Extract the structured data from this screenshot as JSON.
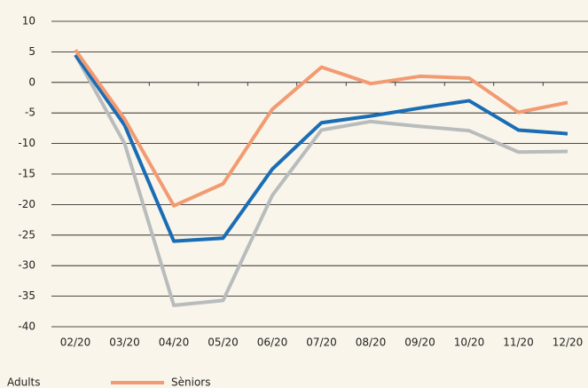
{
  "chart_data": {
    "type": "line",
    "categories": [
      "02/20",
      "03/20",
      "04/20",
      "05/20",
      "06/20",
      "07/20",
      "08/20",
      "09/20",
      "10/20",
      "11/20",
      "12/20"
    ],
    "series": [
      {
        "color": "#b8bcbd",
        "values": [
          4.5,
          -10,
          -36.5,
          -35.7,
          -18.5,
          -7.8,
          -6.4,
          -7.2,
          -7.9,
          -11.4,
          -11.3
        ]
      },
      {
        "name": "Adults",
        "color": "#1a6db5",
        "values": [
          4.5,
          -7,
          -26,
          -25.5,
          -14.2,
          -6.6,
          -5.5,
          -4.2,
          -3,
          -7.8,
          -8.4
        ]
      },
      {
        "name": "Sèniors",
        "color": "#f29b72",
        "values": [
          5.3,
          -6,
          -20.2,
          -16.6,
          -4.4,
          2.5,
          -0.2,
          1,
          0.7,
          -4.9,
          -3.3
        ]
      }
    ],
    "ylim": [
      -40,
      10
    ],
    "yticks": [
      -40,
      -35,
      -30,
      -25,
      -20,
      -15,
      -10,
      -5,
      0,
      5,
      10
    ],
    "grid": true
  }
}
